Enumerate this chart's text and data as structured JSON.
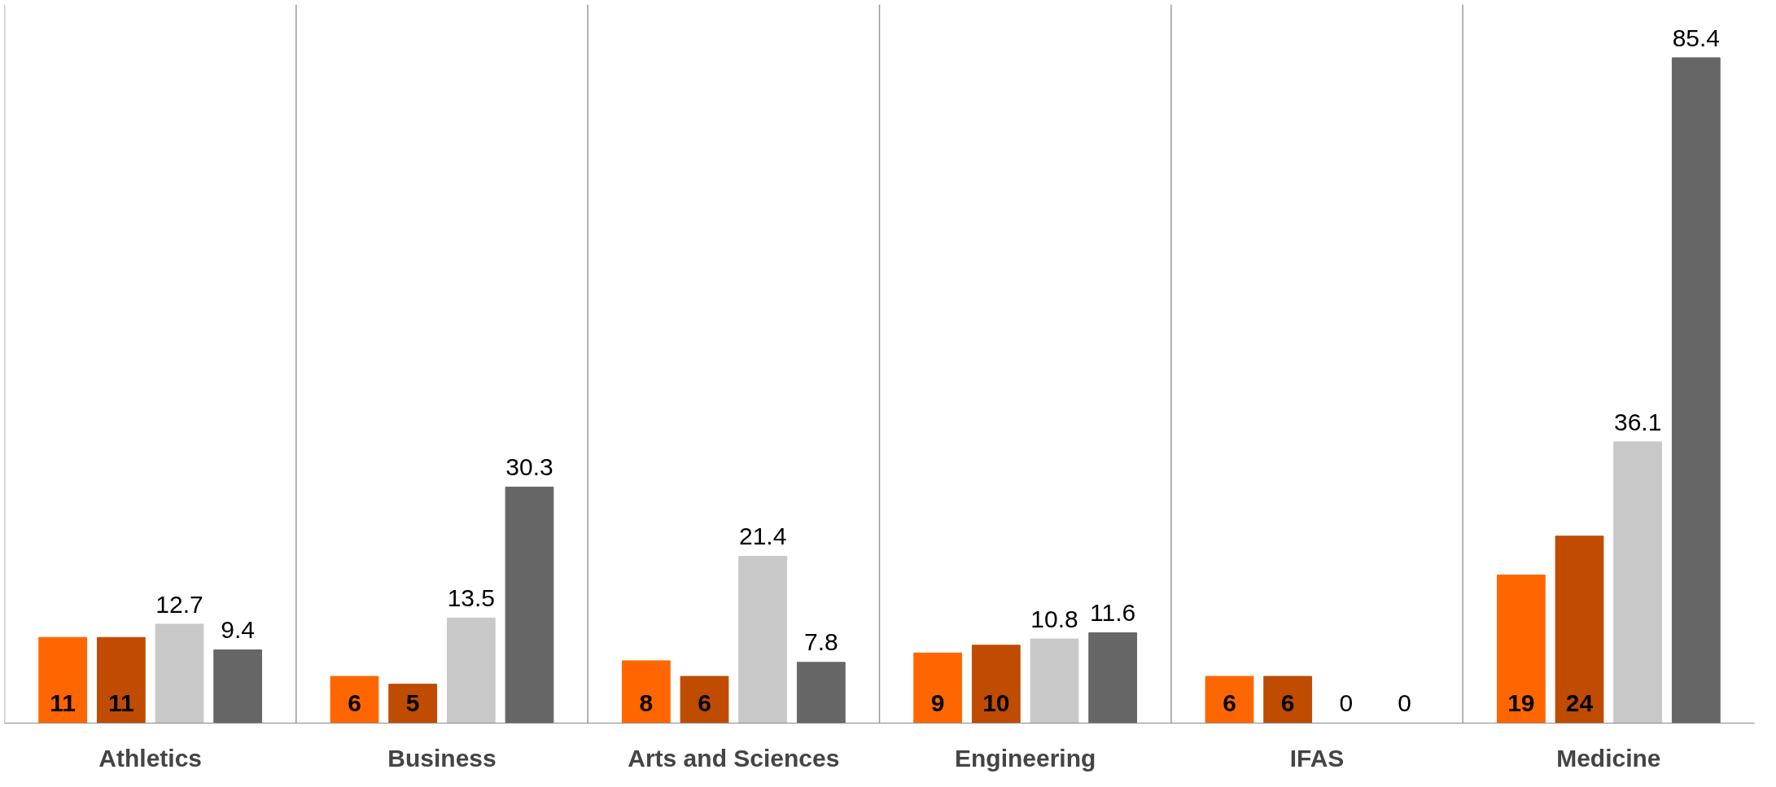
{
  "chart_data": {
    "type": "bar",
    "categories": [
      "Athletics",
      "Business",
      "Arts and Sciences",
      "Engineering",
      "IFAS",
      "Medicine"
    ],
    "series": [
      {
        "color": "#ff6600",
        "values": [
          11,
          6,
          8,
          9,
          6,
          19
        ]
      },
      {
        "color": "#bf4c00",
        "values": [
          11,
          5,
          6,
          10,
          6,
          24
        ]
      },
      {
        "color": "#c8c8c8",
        "values": [
          12.7,
          13.5,
          21.4,
          10.8,
          0,
          36.1
        ]
      },
      {
        "color": "#666666",
        "values": [
          9.4,
          30.3,
          7.8,
          11.6,
          0,
          85.4
        ]
      }
    ],
    "data_labels": true,
    "grid": "x"
  }
}
